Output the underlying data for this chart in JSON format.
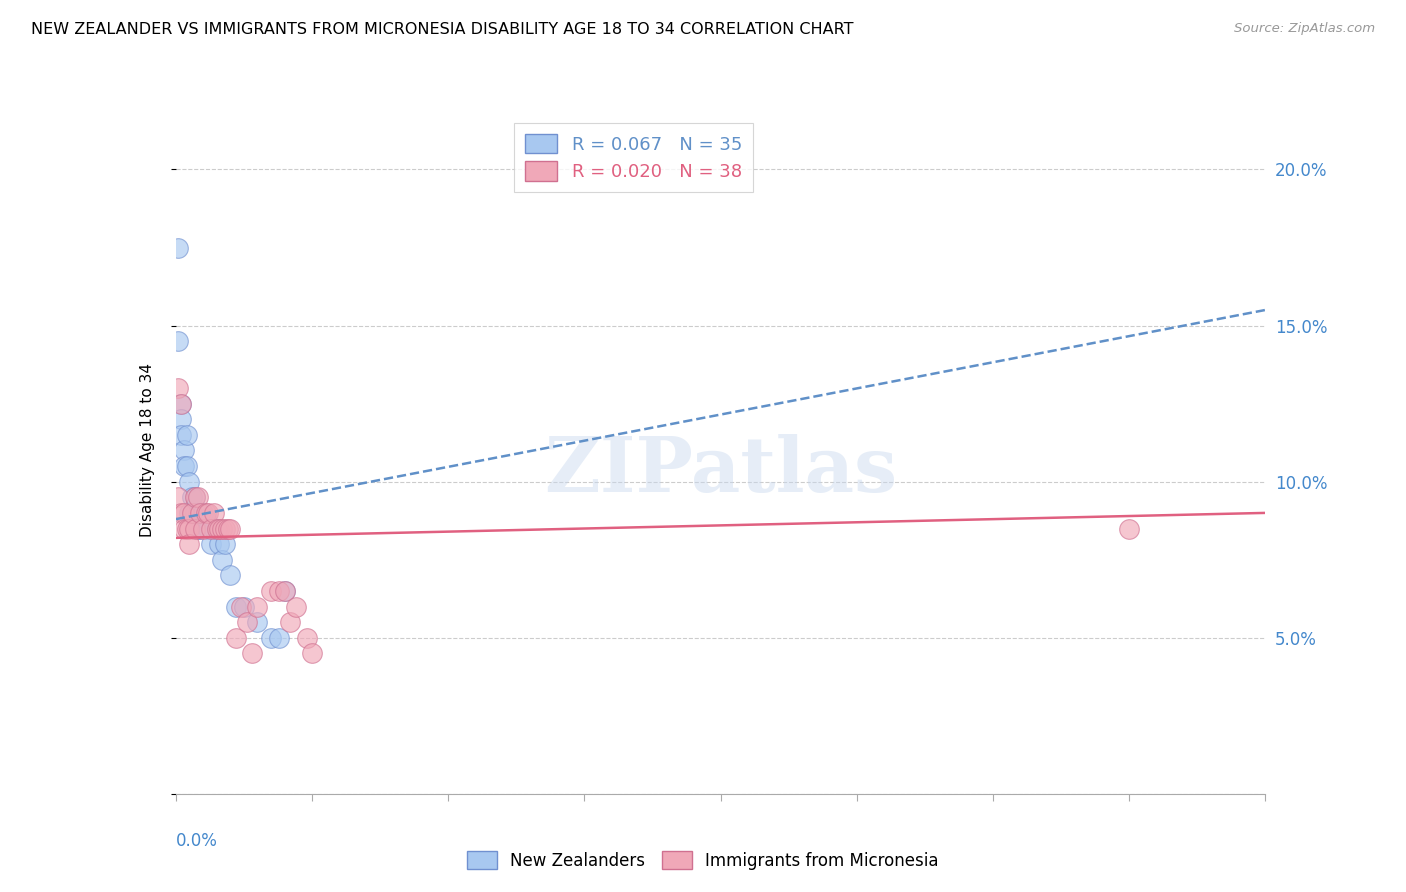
{
  "title": "NEW ZEALANDER VS IMMIGRANTS FROM MICRONESIA DISABILITY AGE 18 TO 34 CORRELATION CHART",
  "source": "Source: ZipAtlas.com",
  "ylabel": "Disability Age 18 to 34",
  "right_ytick_vals": [
    0.0,
    0.05,
    0.1,
    0.15,
    0.2
  ],
  "right_ytick_labels": [
    "",
    "5.0%",
    "10.0%",
    "15.0%",
    "20.0%"
  ],
  "color_blue": "#a8c8f0",
  "color_pink": "#f0a8b8",
  "color_blue_edge": "#7090d0",
  "color_pink_edge": "#d07090",
  "color_blue_line": "#6090c8",
  "color_pink_line": "#e06080",
  "watermark": "ZIPatlas",
  "legend1_r": "0.067",
  "legend1_n": "35",
  "legend2_r": "0.020",
  "legend2_n": "38",
  "blue_x": [
    0.001,
    0.001,
    0.002,
    0.002,
    0.002,
    0.003,
    0.003,
    0.004,
    0.004,
    0.005,
    0.005,
    0.006,
    0.006,
    0.007,
    0.007,
    0.008,
    0.008,
    0.009,
    0.009,
    0.01,
    0.011,
    0.012,
    0.013,
    0.014,
    0.015,
    0.016,
    0.017,
    0.018,
    0.02,
    0.022,
    0.025,
    0.03,
    0.035,
    0.038,
    0.04
  ],
  "blue_y": [
    0.175,
    0.145,
    0.125,
    0.12,
    0.115,
    0.11,
    0.105,
    0.115,
    0.105,
    0.1,
    0.09,
    0.095,
    0.09,
    0.095,
    0.09,
    0.09,
    0.085,
    0.09,
    0.085,
    0.09,
    0.088,
    0.085,
    0.08,
    0.085,
    0.085,
    0.08,
    0.075,
    0.08,
    0.07,
    0.06,
    0.06,
    0.055,
    0.05,
    0.05,
    0.065
  ],
  "pink_x": [
    0.001,
    0.001,
    0.002,
    0.002,
    0.003,
    0.003,
    0.004,
    0.005,
    0.005,
    0.006,
    0.007,
    0.007,
    0.008,
    0.009,
    0.01,
    0.011,
    0.012,
    0.013,
    0.014,
    0.015,
    0.016,
    0.017,
    0.018,
    0.019,
    0.02,
    0.022,
    0.024,
    0.026,
    0.028,
    0.03,
    0.035,
    0.038,
    0.04,
    0.042,
    0.044,
    0.048,
    0.05,
    0.35
  ],
  "pink_y": [
    0.13,
    0.095,
    0.125,
    0.09,
    0.09,
    0.085,
    0.085,
    0.085,
    0.08,
    0.09,
    0.095,
    0.085,
    0.095,
    0.09,
    0.085,
    0.09,
    0.09,
    0.085,
    0.09,
    0.085,
    0.085,
    0.085,
    0.085,
    0.085,
    0.085,
    0.05,
    0.06,
    0.055,
    0.045,
    0.06,
    0.065,
    0.065,
    0.065,
    0.055,
    0.06,
    0.05,
    0.045,
    0.085
  ],
  "blue_trend_x": [
    0.0,
    0.4
  ],
  "blue_trend_y": [
    0.088,
    0.155
  ],
  "pink_trend_x": [
    0.0,
    0.4
  ],
  "pink_trend_y": [
    0.082,
    0.09
  ],
  "xlim": [
    0.0,
    0.4
  ],
  "ylim": [
    0.0,
    0.22
  ],
  "xtick_positions": [
    0.0,
    0.05,
    0.1,
    0.15,
    0.2,
    0.25,
    0.3,
    0.35,
    0.4
  ]
}
